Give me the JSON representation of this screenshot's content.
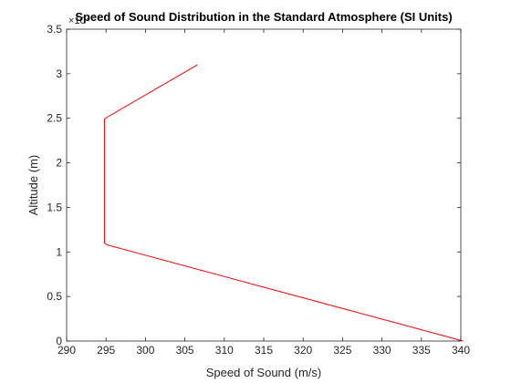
{
  "chart_data": {
    "type": "line",
    "title": "Speed of Sound Distribution in the Standard Atmosphere (SI Units)",
    "xlabel": "Speed of Sound (m/s)",
    "ylabel": "Altitude (m)",
    "xlim": [
      290,
      340
    ],
    "ylim": [
      0,
      35000
    ],
    "x_ticks": [
      290,
      295,
      300,
      305,
      310,
      315,
      320,
      325,
      330,
      335,
      340
    ],
    "y_ticks": [
      0,
      5000,
      10000,
      15000,
      20000,
      25000,
      30000,
      35000
    ],
    "x_tick_labels": [
      "290",
      "295",
      "300",
      "305",
      "310",
      "315",
      "320",
      "325",
      "330",
      "335",
      "340"
    ],
    "y_tick_labels": [
      "0",
      "0.5",
      "1",
      "1.5",
      "2",
      "2.5",
      "3",
      "3.5"
    ],
    "y_exponent_label": "×10⁴",
    "grid": false,
    "box": true,
    "series": [
      {
        "color": "#ff0000",
        "x": [
          340.3,
          295.1,
          294.8,
          294.8,
          294.8,
          295.1,
          306.6
        ],
        "y": [
          0,
          10800,
          11000,
          20000,
          24900,
          25100,
          31000
        ]
      }
    ]
  }
}
